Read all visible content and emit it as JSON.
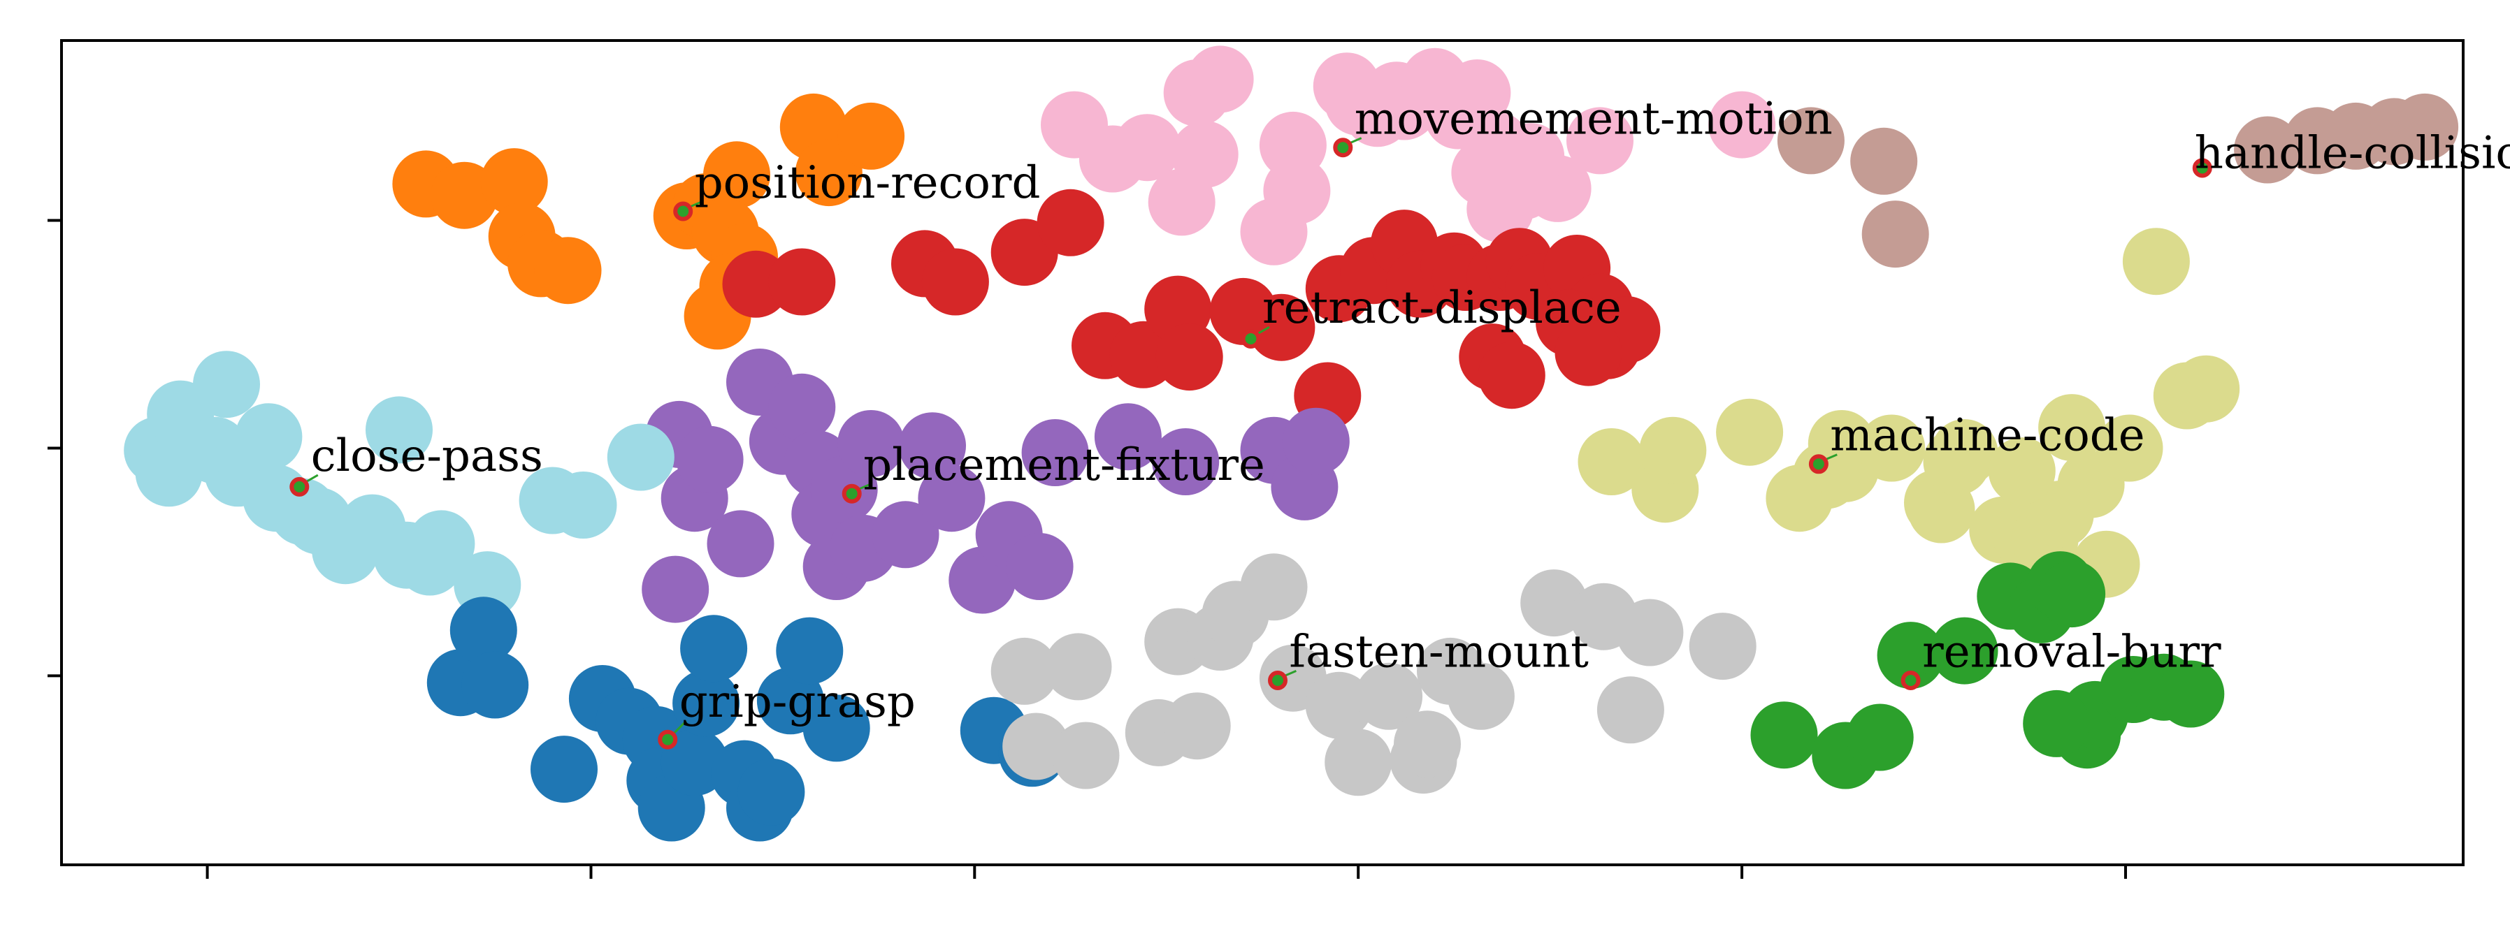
{
  "chart_data": {
    "type": "scatter",
    "title": "",
    "xlabel": "",
    "ylabel": "",
    "xlim": [
      -0.38,
      5.88
    ],
    "ylim": [
      -0.83,
      2.79
    ],
    "xticks": [
      0,
      1,
      2,
      3,
      4,
      5
    ],
    "yticks": [
      0,
      1,
      2
    ],
    "x_tick_labels": [
      "",
      "",
      "",
      "",
      "",
      ""
    ],
    "y_tick_labels": [
      "",
      "",
      ""
    ],
    "grid": false,
    "legend": "none",
    "marker_color": "#d62728",
    "arrow_color": "#2ca02c",
    "series": [
      {
        "color": "#ff7f0e",
        "points": [
          [
            0.57,
            2.16
          ],
          [
            0.67,
            2.11
          ],
          [
            0.8,
            2.17
          ],
          [
            0.82,
            1.93
          ],
          [
            0.87,
            1.81
          ],
          [
            0.94,
            1.78
          ],
          [
            1.25,
            2.02
          ],
          [
            1.3,
            2.06
          ],
          [
            1.38,
            2.2
          ],
          [
            1.35,
            1.95
          ],
          [
            1.4,
            1.84
          ],
          [
            1.37,
            1.71
          ],
          [
            1.33,
            1.58
          ],
          [
            1.58,
            2.41
          ],
          [
            1.62,
            2.21
          ],
          [
            1.73,
            2.37
          ]
        ]
      },
      {
        "color": "#f7b6d2",
        "points": [
          [
            2.26,
            2.42
          ],
          [
            2.36,
            2.27
          ],
          [
            2.45,
            2.32
          ],
          [
            2.54,
            2.08
          ],
          [
            2.58,
            2.56
          ],
          [
            2.64,
            2.62
          ],
          [
            2.6,
            2.29
          ],
          [
            2.78,
            1.95
          ],
          [
            2.84,
            2.13
          ],
          [
            2.83,
            2.33
          ],
          [
            2.97,
            2.59
          ],
          [
            3.0,
            2.52
          ],
          [
            3.05,
            2.47
          ],
          [
            3.1,
            2.55
          ],
          [
            3.12,
            2.5
          ],
          [
            3.2,
            2.61
          ],
          [
            3.26,
            2.46
          ],
          [
            3.31,
            2.56
          ],
          [
            3.33,
            2.21
          ],
          [
            3.37,
            2.05
          ],
          [
            3.43,
            2.15
          ],
          [
            3.52,
            2.14
          ],
          [
            3.36,
            2.33
          ],
          [
            3.45,
            2.28
          ],
          [
            3.63,
            2.35
          ],
          [
            4.0,
            2.42
          ]
        ]
      },
      {
        "color": "#c49c94",
        "points": [
          [
            4.18,
            2.35
          ],
          [
            4.37,
            2.26
          ],
          [
            4.4,
            1.94
          ],
          [
            5.37,
            2.31
          ],
          [
            5.5,
            2.35
          ],
          [
            5.6,
            2.37
          ],
          [
            5.7,
            2.39
          ],
          [
            5.78,
            2.41
          ]
        ]
      },
      {
        "color": "#d62728",
        "points": [
          [
            1.43,
            1.72
          ],
          [
            1.55,
            1.73
          ],
          [
            1.87,
            1.81
          ],
          [
            1.95,
            1.73
          ],
          [
            2.13,
            1.86
          ],
          [
            2.25,
            1.99
          ],
          [
            2.34,
            1.45
          ],
          [
            2.44,
            1.41
          ],
          [
            2.53,
            1.61
          ],
          [
            2.56,
            1.4
          ],
          [
            2.7,
            1.6
          ],
          [
            2.8,
            1.53
          ],
          [
            2.92,
            1.23
          ],
          [
            2.95,
            1.7
          ],
          [
            3.04,
            1.78
          ],
          [
            3.12,
            1.9
          ],
          [
            3.16,
            1.72
          ],
          [
            3.25,
            1.8
          ],
          [
            3.28,
            1.75
          ],
          [
            3.37,
            1.75
          ],
          [
            3.42,
            1.82
          ],
          [
            3.47,
            1.71
          ],
          [
            3.57,
            1.79
          ],
          [
            3.63,
            1.62
          ],
          [
            3.55,
            1.55
          ],
          [
            3.65,
            1.45
          ],
          [
            3.7,
            1.52
          ],
          [
            3.35,
            1.4
          ],
          [
            3.4,
            1.32
          ],
          [
            3.6,
            1.42
          ]
        ]
      },
      {
        "color": "#9467bd",
        "points": [
          [
            1.22,
            0.38
          ],
          [
            1.23,
            1.06
          ],
          [
            1.27,
            0.78
          ],
          [
            1.31,
            0.95
          ],
          [
            1.39,
            0.58
          ],
          [
            1.44,
            1.29
          ],
          [
            1.5,
            1.03
          ],
          [
            1.55,
            1.18
          ],
          [
            1.59,
            0.93
          ],
          [
            1.61,
            0.71
          ],
          [
            1.64,
            0.48
          ],
          [
            1.66,
            0.82
          ],
          [
            1.73,
            1.02
          ],
          [
            1.71,
            0.56
          ],
          [
            1.82,
            0.62
          ],
          [
            1.89,
            1.01
          ],
          [
            1.94,
            0.78
          ],
          [
            2.02,
            0.42
          ],
          [
            2.09,
            0.62
          ],
          [
            2.17,
            0.48
          ],
          [
            2.21,
            0.98
          ],
          [
            2.4,
            1.05
          ],
          [
            2.55,
            0.94
          ],
          [
            2.78,
            0.99
          ],
          [
            2.86,
            0.83
          ],
          [
            2.89,
            1.03
          ]
        ]
      },
      {
        "color": "#9edae5",
        "points": [
          [
            -0.13,
            0.99
          ],
          [
            -0.1,
            0.89
          ],
          [
            -0.07,
            1.15
          ],
          [
            -0.03,
            1.0
          ],
          [
            0.02,
            0.99
          ],
          [
            0.05,
            1.28
          ],
          [
            0.08,
            0.89
          ],
          [
            0.11,
            0.95
          ],
          [
            0.16,
            1.05
          ],
          [
            0.18,
            0.78
          ],
          [
            0.25,
            0.72
          ],
          [
            0.29,
            0.68
          ],
          [
            0.36,
            0.55
          ],
          [
            0.43,
            0.65
          ],
          [
            0.5,
            1.08
          ],
          [
            0.52,
            0.53
          ],
          [
            0.58,
            0.5
          ],
          [
            0.61,
            0.58
          ],
          [
            0.73,
            0.4
          ],
          [
            0.9,
            0.77
          ],
          [
            0.98,
            0.75
          ],
          [
            1.13,
            0.96
          ]
        ]
      },
      {
        "color": "#1f77b4",
        "points": [
          [
            0.66,
            -0.03
          ],
          [
            0.72,
            0.2
          ],
          [
            0.75,
            -0.04
          ],
          [
            0.93,
            -0.41
          ],
          [
            1.03,
            -0.1
          ],
          [
            1.1,
            -0.2
          ],
          [
            1.17,
            -0.28
          ],
          [
            1.18,
            -0.46
          ],
          [
            1.21,
            -0.58
          ],
          [
            1.27,
            -0.38
          ],
          [
            1.3,
            -0.12
          ],
          [
            1.32,
            0.12
          ],
          [
            1.4,
            -0.43
          ],
          [
            1.44,
            -0.58
          ],
          [
            1.47,
            -0.51
          ],
          [
            1.52,
            -0.11
          ],
          [
            1.57,
            0.11
          ],
          [
            1.64,
            -0.23
          ],
          [
            2.05,
            -0.24
          ],
          [
            2.15,
            -0.34
          ]
        ]
      },
      {
        "color": "#c7c7c7",
        "points": [
          [
            2.13,
            0.02
          ],
          [
            2.16,
            -0.31
          ],
          [
            2.27,
            0.04
          ],
          [
            2.29,
            -0.35
          ],
          [
            2.48,
            -0.25
          ],
          [
            2.53,
            0.15
          ],
          [
            2.58,
            -0.22
          ],
          [
            2.64,
            0.17
          ],
          [
            2.68,
            0.27
          ],
          [
            2.78,
            0.39
          ],
          [
            2.83,
            -0.01
          ],
          [
            2.95,
            -0.13
          ],
          [
            3.0,
            -0.38
          ],
          [
            3.08,
            -0.09
          ],
          [
            3.17,
            -0.37
          ],
          [
            3.24,
            0.02
          ],
          [
            3.32,
            -0.09
          ],
          [
            3.51,
            0.32
          ],
          [
            3.64,
            0.26
          ],
          [
            3.71,
            -0.15
          ],
          [
            3.76,
            0.19
          ],
          [
            3.95,
            0.13
          ],
          [
            3.18,
            -0.3
          ]
        ]
      },
      {
        "color": "#dbdb8d",
        "points": [
          [
            3.66,
            0.94
          ],
          [
            3.8,
            0.82
          ],
          [
            3.82,
            0.99
          ],
          [
            4.02,
            1.07
          ],
          [
            4.15,
            0.78
          ],
          [
            4.22,
            0.88
          ],
          [
            4.26,
            1.02
          ],
          [
            4.27,
            0.91
          ],
          [
            4.39,
            1.0
          ],
          [
            4.51,
            0.76
          ],
          [
            4.52,
            0.73
          ],
          [
            4.58,
            0.98
          ],
          [
            4.68,
            0.64
          ],
          [
            4.74,
            0.62
          ],
          [
            4.79,
            0.6
          ],
          [
            4.83,
            0.71
          ],
          [
            4.86,
            1.09
          ],
          [
            4.91,
            0.84
          ],
          [
            4.95,
            0.49
          ],
          [
            5.01,
            1.0
          ],
          [
            5.08,
            1.82
          ],
          [
            5.16,
            1.23
          ],
          [
            5.21,
            1.26
          ],
          [
            4.56,
            0.94
          ],
          [
            4.73,
            0.9
          ]
        ]
      },
      {
        "color": "#2ca02c",
        "points": [
          [
            4.11,
            -0.26
          ],
          [
            4.27,
            -0.35
          ],
          [
            4.36,
            -0.27
          ],
          [
            4.44,
            0.09
          ],
          [
            4.58,
            0.11
          ],
          [
            4.7,
            0.35
          ],
          [
            4.78,
            0.29
          ],
          [
            4.83,
            0.4
          ],
          [
            4.86,
            0.36
          ],
          [
            4.9,
            -0.26
          ],
          [
            4.92,
            -0.17
          ],
          [
            5.02,
            -0.06
          ],
          [
            5.1,
            -0.05
          ],
          [
            5.17,
            -0.08
          ],
          [
            4.82,
            -0.21
          ]
        ]
      }
    ],
    "annotations": [
      {
        "text": "movemement-motion",
        "x": 2.96,
        "y": 2.32,
        "label_x": 2.99,
        "label_y": 2.38
      },
      {
        "text": "position-record",
        "x": 1.24,
        "y": 2.04,
        "label_x": 1.27,
        "label_y": 2.1
      },
      {
        "text": "handle-collision",
        "x": 5.2,
        "y": 2.23,
        "label_x": 5.18,
        "label_y": 2.23
      },
      {
        "text": "retract-displace",
        "x": 2.72,
        "y": 1.48,
        "label_x": 2.75,
        "label_y": 1.55
      },
      {
        "text": "close-pass",
        "x": 0.24,
        "y": 0.83,
        "label_x": 0.27,
        "label_y": 0.9
      },
      {
        "text": "placement-fixture",
        "x": 1.68,
        "y": 0.8,
        "label_x": 1.71,
        "label_y": 0.86
      },
      {
        "text": "machine-code",
        "x": 4.2,
        "y": 0.93,
        "label_x": 4.23,
        "label_y": 0.99
      },
      {
        "text": "fasten-mount",
        "x": 2.79,
        "y": -0.02,
        "label_x": 2.82,
        "label_y": 0.04
      },
      {
        "text": "removal-burr",
        "x": 4.44,
        "y": -0.02,
        "label_x": 4.47,
        "label_y": 0.04
      },
      {
        "text": "grip-grasp",
        "x": 1.2,
        "y": -0.28,
        "label_x": 1.23,
        "label_y": -0.18
      }
    ]
  }
}
